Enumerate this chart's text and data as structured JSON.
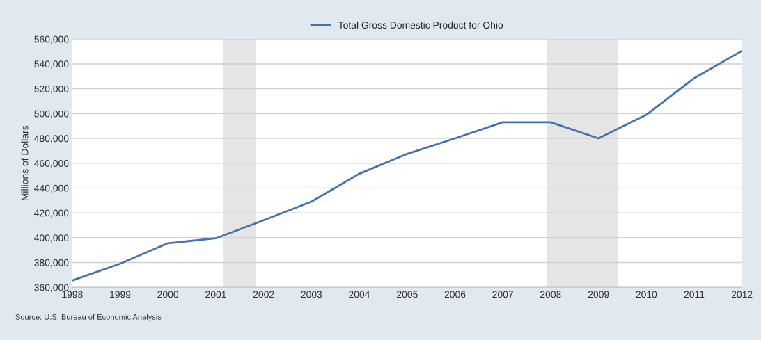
{
  "chart_data": {
    "type": "line",
    "x": [
      "1998-01-01",
      "1999-01-01",
      "2000-01-01",
      "2001-01-01",
      "2002-01-01",
      "2003-01-01",
      "2004-01-01",
      "2005-01-01",
      "2006-01-01",
      "2007-01-01",
      "2008-01-01",
      "2009-01-01",
      "2010-01-01",
      "2011-01-01",
      "2012-01-01"
    ],
    "series": [
      {
        "name": "Total Gross Domestic Product for Ohio",
        "color": "#4572a7",
        "values": [
          365500,
          379000,
          395500,
          399500,
          414000,
          429000,
          451500,
          467500,
          480000,
          493000,
          493000,
          480000,
          499000,
          528500,
          550500
        ]
      }
    ],
    "ylabel": "Millions of Dollars",
    "xlim": [
      "1998-01-01",
      "2012-01-01"
    ],
    "xticks": [
      {
        "value": "1998-01-01",
        "label": "1998"
      },
      {
        "value": "1999-01-01",
        "label": "1999"
      },
      {
        "value": "2000-01-01",
        "label": "2000"
      },
      {
        "value": "2001-01-01",
        "label": "2001"
      },
      {
        "value": "2002-01-01",
        "label": "2002"
      },
      {
        "value": "2003-01-01",
        "label": "2003"
      },
      {
        "value": "2004-01-01",
        "label": "2004"
      },
      {
        "value": "2005-01-01",
        "label": "2005"
      },
      {
        "value": "2006-01-01",
        "label": "2006"
      },
      {
        "value": "2007-01-01",
        "label": "2007"
      },
      {
        "value": "2008-01-01",
        "label": "2008"
      },
      {
        "value": "2009-01-01",
        "label": "2009"
      },
      {
        "value": "2010-01-01",
        "label": "2010"
      },
      {
        "value": "2011-01-01",
        "label": "2011"
      },
      {
        "value": "2012-01-01",
        "label": "2012"
      }
    ],
    "ylim": [
      360000,
      560000
    ],
    "yticks": [
      {
        "value": 360000,
        "label": "360,000"
      },
      {
        "value": 380000,
        "label": "380,000"
      },
      {
        "value": 400000,
        "label": "400,000"
      },
      {
        "value": 420000,
        "label": "420,000"
      },
      {
        "value": 440000,
        "label": "440,000"
      },
      {
        "value": 460000,
        "label": "460,000"
      },
      {
        "value": 480000,
        "label": "480,000"
      },
      {
        "value": 500000,
        "label": "500,000"
      },
      {
        "value": 520000,
        "label": "520,000"
      },
      {
        "value": 540000,
        "label": "540,000"
      },
      {
        "value": 560000,
        "label": "560,000"
      }
    ],
    "bands": [
      {
        "axis": "x",
        "from": "2001-03-01",
        "to": "2001-11-01",
        "color": "#e5e5e5"
      },
      {
        "axis": "x",
        "from": "2007-12-01",
        "to": "2009-06-01",
        "color": "#e5e5e5"
      }
    ],
    "grid": "y",
    "legend": "top",
    "marker": "none",
    "line_style": "solid",
    "annotations": [
      "Source: U.S. Bureau of Economic Analysis"
    ]
  }
}
